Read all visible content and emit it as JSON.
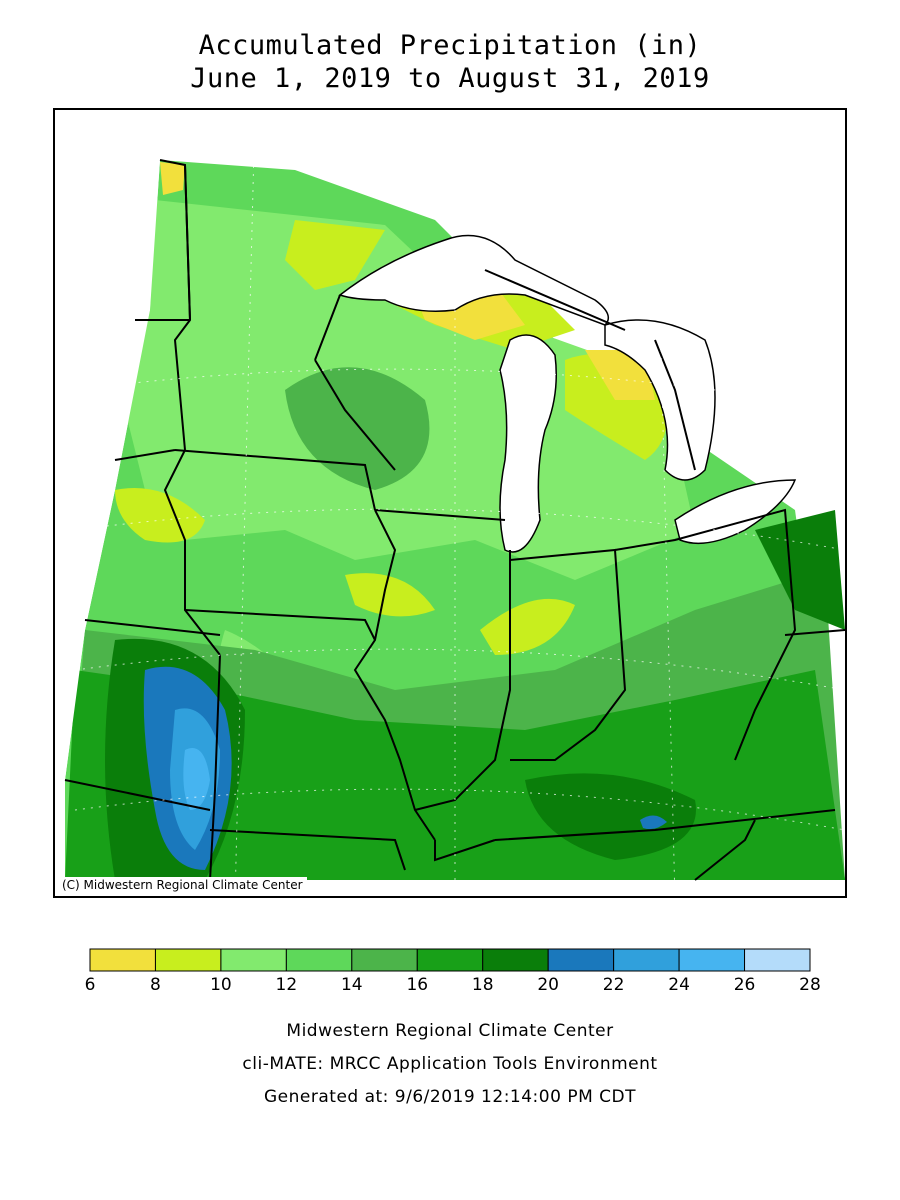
{
  "title": {
    "line1": "Accumulated Precipitation (in)",
    "line2": "June 1, 2019 to August 31, 2019"
  },
  "map": {
    "copyright": "(C) Midwestern Regional Climate Center",
    "region": "Upper Midwest / Great Lakes",
    "lake_color": "#ffffff"
  },
  "legend": {
    "unit": "in",
    "bins": [
      {
        "min": 6,
        "max": 8,
        "color": "#f2e03c"
      },
      {
        "min": 8,
        "max": 10,
        "color": "#c8ee1e"
      },
      {
        "min": 10,
        "max": 12,
        "color": "#82ea6e"
      },
      {
        "min": 12,
        "max": 14,
        "color": "#5ed85a"
      },
      {
        "min": 14,
        "max": 16,
        "color": "#4cb44a"
      },
      {
        "min": 16,
        "max": 18,
        "color": "#18a018"
      },
      {
        "min": 18,
        "max": 20,
        "color": "#0a7e0a"
      },
      {
        "min": 20,
        "max": 22,
        "color": "#1a78bc"
      },
      {
        "min": 22,
        "max": 24,
        "color": "#30a0dc"
      },
      {
        "min": 24,
        "max": 26,
        "color": "#46b4f0"
      },
      {
        "min": 26,
        "max": 28,
        "color": "#b4dcfa"
      }
    ],
    "ticks": [
      "6",
      "8",
      "10",
      "12",
      "14",
      "16",
      "18",
      "20",
      "22",
      "24",
      "26",
      "28"
    ]
  },
  "footer": {
    "line1": "Midwestern Regional Climate Center",
    "line2": "cli-MATE: MRCC Application Tools Environment",
    "line3": "Generated at: 9/6/2019 12:14:00 PM CDT"
  }
}
